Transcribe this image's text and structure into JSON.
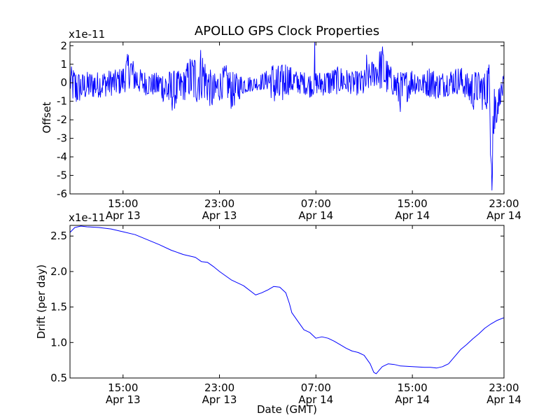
{
  "figure": {
    "title": "APOLLO GPS Clock Properties",
    "xlabel": "Date (GMT)"
  },
  "chart_data": [
    {
      "type": "line",
      "title": "APOLLO GPS Clock Properties",
      "ylabel": "Offset",
      "scale_label": "x1e-11",
      "xlabel": "",
      "xlim": [
        10.6,
        46.6
      ],
      "ylim": [
        -6,
        2.2
      ],
      "x_ticks": [
        {
          "x": 15,
          "label_time": "15:00",
          "label_date": "Apr 13"
        },
        {
          "x": 23,
          "label_time": "23:00",
          "label_date": "Apr 13"
        },
        {
          "x": 31,
          "label_time": "07:00",
          "label_date": "Apr 14"
        },
        {
          "x": 39,
          "label_time": "15:00",
          "label_date": "Apr 14"
        },
        {
          "x": 47,
          "label_time": "23:00",
          "label_date": "Apr 14"
        }
      ],
      "y_ticks": [
        {
          "y": 2,
          "label": "2"
        },
        {
          "y": 1,
          "label": "1"
        },
        {
          "y": 0,
          "label": "0"
        },
        {
          "y": -1,
          "label": "-1"
        },
        {
          "y": -2,
          "label": "-2"
        },
        {
          "y": -3,
          "label": "-3"
        },
        {
          "y": -4,
          "label": "-4"
        },
        {
          "y": -5,
          "label": "-5"
        },
        {
          "y": -6,
          "label": "-6"
        }
      ],
      "series": [
        {
          "color": "#0000ff",
          "envelope": {
            "x": [
              10.6,
              11.0,
              11.5,
              12.0,
              13.0,
              14.0,
              14.5,
              15.0,
              15.5,
              16.0,
              16.5,
              17.0,
              17.5,
              18.0,
              19.0,
              20.0,
              20.5,
              21.0,
              21.5,
              22.0,
              22.5,
              23.0,
              23.5,
              24.0,
              25.0,
              26.0,
              27.0,
              27.5,
              28.0,
              28.5,
              29.0,
              29.5,
              30.0,
              30.5,
              31.0,
              31.5,
              32.0,
              33.0,
              34.0,
              35.0,
              35.5,
              36.0,
              36.5,
              37.0,
              37.5,
              38.0,
              39.0,
              40.0,
              40.5,
              41.0,
              42.0,
              43.0,
              43.5,
              44.0,
              44.5,
              45.0,
              45.3,
              45.6,
              45.8,
              46.0,
              46.3,
              46.6
            ],
            "high": [
              0.9,
              0.8,
              0.5,
              0.6,
              0.6,
              0.7,
              0.7,
              0.9,
              1.8,
              1.0,
              0.7,
              0.6,
              0.5,
              0.6,
              0.7,
              0.6,
              1.4,
              1.6,
              2.0,
              0.9,
              0.5,
              0.6,
              1.0,
              0.6,
              0.4,
              0.3,
              0.7,
              1.2,
              0.9,
              1.2,
              0.8,
              0.6,
              0.6,
              0.5,
              0.6,
              0.6,
              0.7,
              0.9,
              0.6,
              0.7,
              1.1,
              1.4,
              2.1,
              1.1,
              0.6,
              0.6,
              0.8,
              0.5,
              1.0,
              0.5,
              0.7,
              0.9,
              0.5,
              0.7,
              0.6,
              0.6,
              1.3,
              0.6,
              0.4,
              -0.4,
              -0.1,
              0.5
            ],
            "low": [
              -0.6,
              -1.4,
              -1.0,
              -0.9,
              -0.8,
              -0.7,
              -0.7,
              -0.6,
              -0.3,
              -0.5,
              -0.6,
              -0.7,
              -0.7,
              -0.8,
              -1.6,
              -1.0,
              -0.8,
              -1.3,
              -0.9,
              -1.1,
              -1.6,
              -1.0,
              -0.7,
              -1.5,
              -0.6,
              -0.4,
              -0.4,
              -1.2,
              -1.5,
              -0.7,
              -0.6,
              -0.6,
              -0.6,
              -0.8,
              -0.6,
              -0.7,
              -0.7,
              -0.6,
              -0.6,
              -0.8,
              -0.3,
              -0.2,
              -0.5,
              -0.7,
              -0.7,
              -1.6,
              -0.6,
              -0.7,
              -0.8,
              -0.9,
              -0.7,
              -0.6,
              -0.9,
              -1.6,
              -1.0,
              -1.8,
              -1.2,
              -5.8,
              -3.5,
              -2.2,
              -1.1,
              -0.8
            ]
          },
          "spikes": [
            {
              "x": 30.9,
              "y": 2.2
            },
            {
              "x": 35.2,
              "y": 1.5
            },
            {
              "x": 45.6,
              "y": -5.8
            }
          ]
        }
      ]
    },
    {
      "type": "line",
      "ylabel": "Drift (per day)",
      "scale_label": "x1e-11",
      "xlabel": "Date (GMT)",
      "xlim": [
        10.6,
        46.6
      ],
      "ylim": [
        0.5,
        2.65
      ],
      "x_ticks": [
        {
          "x": 15,
          "label_time": "15:00",
          "label_date": "Apr 13"
        },
        {
          "x": 23,
          "label_time": "23:00",
          "label_date": "Apr 13"
        },
        {
          "x": 31,
          "label_time": "07:00",
          "label_date": "Apr 14"
        },
        {
          "x": 39,
          "label_time": "15:00",
          "label_date": "Apr 14"
        },
        {
          "x": 47,
          "label_time": "23:00",
          "label_date": "Apr 14"
        }
      ],
      "y_ticks": [
        {
          "y": 2.5,
          "label": "2.5"
        },
        {
          "y": 2.0,
          "label": "2.0"
        },
        {
          "y": 1.5,
          "label": "1.5"
        },
        {
          "y": 1.0,
          "label": "1.0"
        },
        {
          "y": 0.5,
          "label": "0.5"
        }
      ],
      "series": [
        {
          "color": "#0000ff",
          "x": [
            10.6,
            11.0,
            11.5,
            12.0,
            13.0,
            14.0,
            15.0,
            16.0,
            17.0,
            18.0,
            19.0,
            20.0,
            21.0,
            21.5,
            22.0,
            22.5,
            23.0,
            23.5,
            24.0,
            25.0,
            26.0,
            26.5,
            27.0,
            27.5,
            28.0,
            28.5,
            28.8,
            29.0,
            29.5,
            30.0,
            30.5,
            31.0,
            31.5,
            32.0,
            32.5,
            33.0,
            33.5,
            34.0,
            34.5,
            35.0,
            35.5,
            35.8,
            36.0,
            36.3,
            36.5,
            37.0,
            37.5,
            38.0,
            39.0,
            40.0,
            40.5,
            41.0,
            41.5,
            42.0,
            42.5,
            43.0,
            43.5,
            44.0,
            44.5,
            45.0,
            45.5,
            46.0,
            46.6
          ],
          "y": [
            2.55,
            2.62,
            2.64,
            2.63,
            2.62,
            2.6,
            2.56,
            2.52,
            2.45,
            2.38,
            2.3,
            2.24,
            2.2,
            2.14,
            2.13,
            2.07,
            2.0,
            1.94,
            1.88,
            1.8,
            1.67,
            1.7,
            1.74,
            1.79,
            1.78,
            1.7,
            1.55,
            1.42,
            1.3,
            1.18,
            1.14,
            1.06,
            1.08,
            1.06,
            1.02,
            0.97,
            0.92,
            0.88,
            0.86,
            0.82,
            0.7,
            0.58,
            0.56,
            0.62,
            0.66,
            0.7,
            0.69,
            0.67,
            0.66,
            0.65,
            0.65,
            0.64,
            0.66,
            0.7,
            0.8,
            0.9,
            0.97,
            1.05,
            1.12,
            1.2,
            1.26,
            1.31,
            1.35
          ]
        }
      ]
    }
  ]
}
